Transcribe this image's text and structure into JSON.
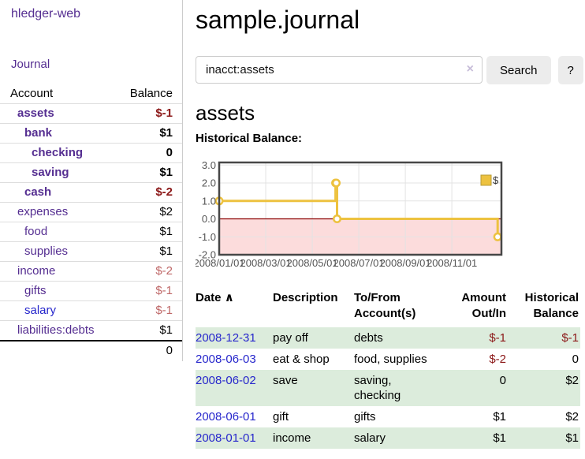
{
  "app": {
    "title": "hledger-web"
  },
  "header": {
    "title": "sample.journal"
  },
  "search": {
    "value": "inacct:assets",
    "clear_icon": "×",
    "button_label": "Search",
    "help_label": "?"
  },
  "account_page": {
    "heading": "assets",
    "chart_label": "Historical Balance:"
  },
  "sidebar": {
    "journal_link": "Journal",
    "accounts": {
      "headers": {
        "account": "Account",
        "balance": "Balance"
      },
      "rows": [
        {
          "name": "assets",
          "level": 1,
          "bold": true,
          "link_color": "purple",
          "balance": "$-1",
          "balance_style": "neg-strong",
          "balance_bold": true
        },
        {
          "name": "bank",
          "level": 2,
          "bold": true,
          "link_color": "purple",
          "balance": "$1",
          "balance_style": "normal",
          "balance_bold": true
        },
        {
          "name": "checking",
          "level": 3,
          "bold": true,
          "link_color": "purple",
          "balance": "0",
          "balance_style": "normal",
          "balance_bold": true
        },
        {
          "name": "saving",
          "level": 3,
          "bold": true,
          "link_color": "purple",
          "balance": "$1",
          "balance_style": "normal",
          "balance_bold": true
        },
        {
          "name": "cash",
          "level": 2,
          "bold": true,
          "link_color": "purple",
          "balance": "$-2",
          "balance_style": "neg-strong",
          "balance_bold": true
        },
        {
          "name": "expenses",
          "level": 1,
          "bold": false,
          "link_color": "purple",
          "balance": "$2",
          "balance_style": "normal",
          "balance_bold": false
        },
        {
          "name": "food",
          "level": 2,
          "bold": false,
          "link_color": "purple",
          "balance": "$1",
          "balance_style": "normal",
          "balance_bold": false
        },
        {
          "name": "supplies",
          "level": 2,
          "bold": false,
          "link_color": "purple",
          "balance": "$1",
          "balance_style": "normal",
          "balance_bold": false
        },
        {
          "name": "income",
          "level": 1,
          "bold": false,
          "link_color": "purple",
          "balance": "$-2",
          "balance_style": "neg-soft",
          "balance_bold": false
        },
        {
          "name": "gifts",
          "level": 2,
          "bold": false,
          "link_color": "purple",
          "balance": "$-1",
          "balance_style": "neg-soft",
          "balance_bold": false
        },
        {
          "name": "salary",
          "level": 2,
          "bold": false,
          "link_color": "blue",
          "balance": "$-1",
          "balance_style": "neg-soft",
          "balance_bold": false
        },
        {
          "name": "liabilities:debts",
          "level": 1,
          "bold": false,
          "link_color": "purple",
          "balance": "$1",
          "balance_style": "normal",
          "balance_bold": false
        }
      ],
      "total": "0"
    }
  },
  "chart_data": {
    "type": "line",
    "step": true,
    "title": "Historical Balance",
    "legend_label": "$",
    "legend_position": "top-right",
    "grid": true,
    "series": [
      {
        "name": "$",
        "points": [
          [
            "2008-01-01",
            1
          ],
          [
            "2008-06-01",
            2
          ],
          [
            "2008-06-02",
            2
          ],
          [
            "2008-06-03",
            0
          ],
          [
            "2008-12-31",
            -1
          ]
        ]
      }
    ],
    "x_ticks": [
      "2008/01/01",
      "2008/03/01",
      "2008/05/01",
      "2008/07/01",
      "2008/09/01",
      "2008/11/01"
    ],
    "y_ticks": [
      "3.0",
      "2.0",
      "1.0",
      "0.0",
      "-1.0",
      "-2.0"
    ],
    "y_tick_values": [
      3,
      2,
      1,
      0,
      -1,
      -2
    ],
    "ylim": [
      -2,
      3
    ],
    "x_range_months": [
      0,
      12.13
    ],
    "negative_region_below": 0
  },
  "register": {
    "headers": [
      "Date",
      "Description",
      "To/From Account(s)",
      "Amount Out/In",
      "Historical Balance"
    ],
    "sort_icon": "∧",
    "rows": [
      {
        "date": "2008-12-31",
        "description": "pay off",
        "accounts": "debts",
        "amount": "$-1",
        "balance": "$-1"
      },
      {
        "date": "2008-06-03",
        "description": "eat & shop",
        "accounts": "food, supplies",
        "amount": "$-2",
        "balance": "0"
      },
      {
        "date": "2008-06-02",
        "description": "save",
        "accounts": "saving, checking",
        "amount": "0",
        "balance": "$2"
      },
      {
        "date": "2008-06-01",
        "description": "gift",
        "accounts": "gifts",
        "amount": "$1",
        "balance": "$2"
      },
      {
        "date": "2008-01-01",
        "description": "income",
        "accounts": "salary",
        "amount": "$1",
        "balance": "$1"
      }
    ]
  },
  "colors": {
    "link_purple": "#552e91",
    "link_blue": "#2727cc",
    "negative_strong": "#8b1717",
    "negative_soft": "#bf6868",
    "row_stripe_green": "#dcecdc",
    "chart_line_gold": "#edc240",
    "chart_negative_pink": "#fcdcdc",
    "chart_zero_line_red": "#8b0000",
    "chart_axis_text": "#545454",
    "button_gray": "#ececec"
  }
}
